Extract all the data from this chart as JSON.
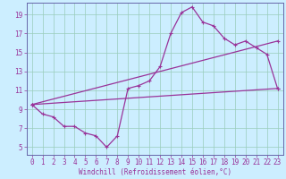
{
  "xlabel": "Windchill (Refroidissement éolien,°C)",
  "bg_color": "#cceeff",
  "grid_color": "#99ccbb",
  "line_color": "#993399",
  "spine_color": "#6666aa",
  "xlim": [
    -0.5,
    23.5
  ],
  "ylim": [
    4.2,
    20.2
  ],
  "xticks": [
    0,
    1,
    2,
    3,
    4,
    5,
    6,
    7,
    8,
    9,
    10,
    11,
    12,
    13,
    14,
    15,
    16,
    17,
    18,
    19,
    20,
    21,
    22,
    23
  ],
  "yticks": [
    5,
    7,
    9,
    11,
    13,
    15,
    17,
    19
  ],
  "main_x": [
    0,
    1,
    2,
    3,
    4,
    5,
    6,
    7,
    8,
    9,
    10,
    11,
    12,
    13,
    14,
    15,
    16,
    17,
    18,
    19,
    20,
    21,
    22,
    23
  ],
  "main_y": [
    9.5,
    8.5,
    8.2,
    7.2,
    7.2,
    6.5,
    6.2,
    5.0,
    6.2,
    11.2,
    11.5,
    12.0,
    13.5,
    17.0,
    19.2,
    19.8,
    18.2,
    17.8,
    16.5,
    15.8,
    16.2,
    15.5,
    14.8,
    11.2
  ],
  "line2_x": [
    0,
    23
  ],
  "line2_y": [
    9.5,
    11.2
  ],
  "line3_x": [
    0,
    23
  ],
  "line3_y": [
    9.5,
    16.2
  ],
  "xlabel_fontsize": 5.5,
  "tick_fontsize": 5.5
}
